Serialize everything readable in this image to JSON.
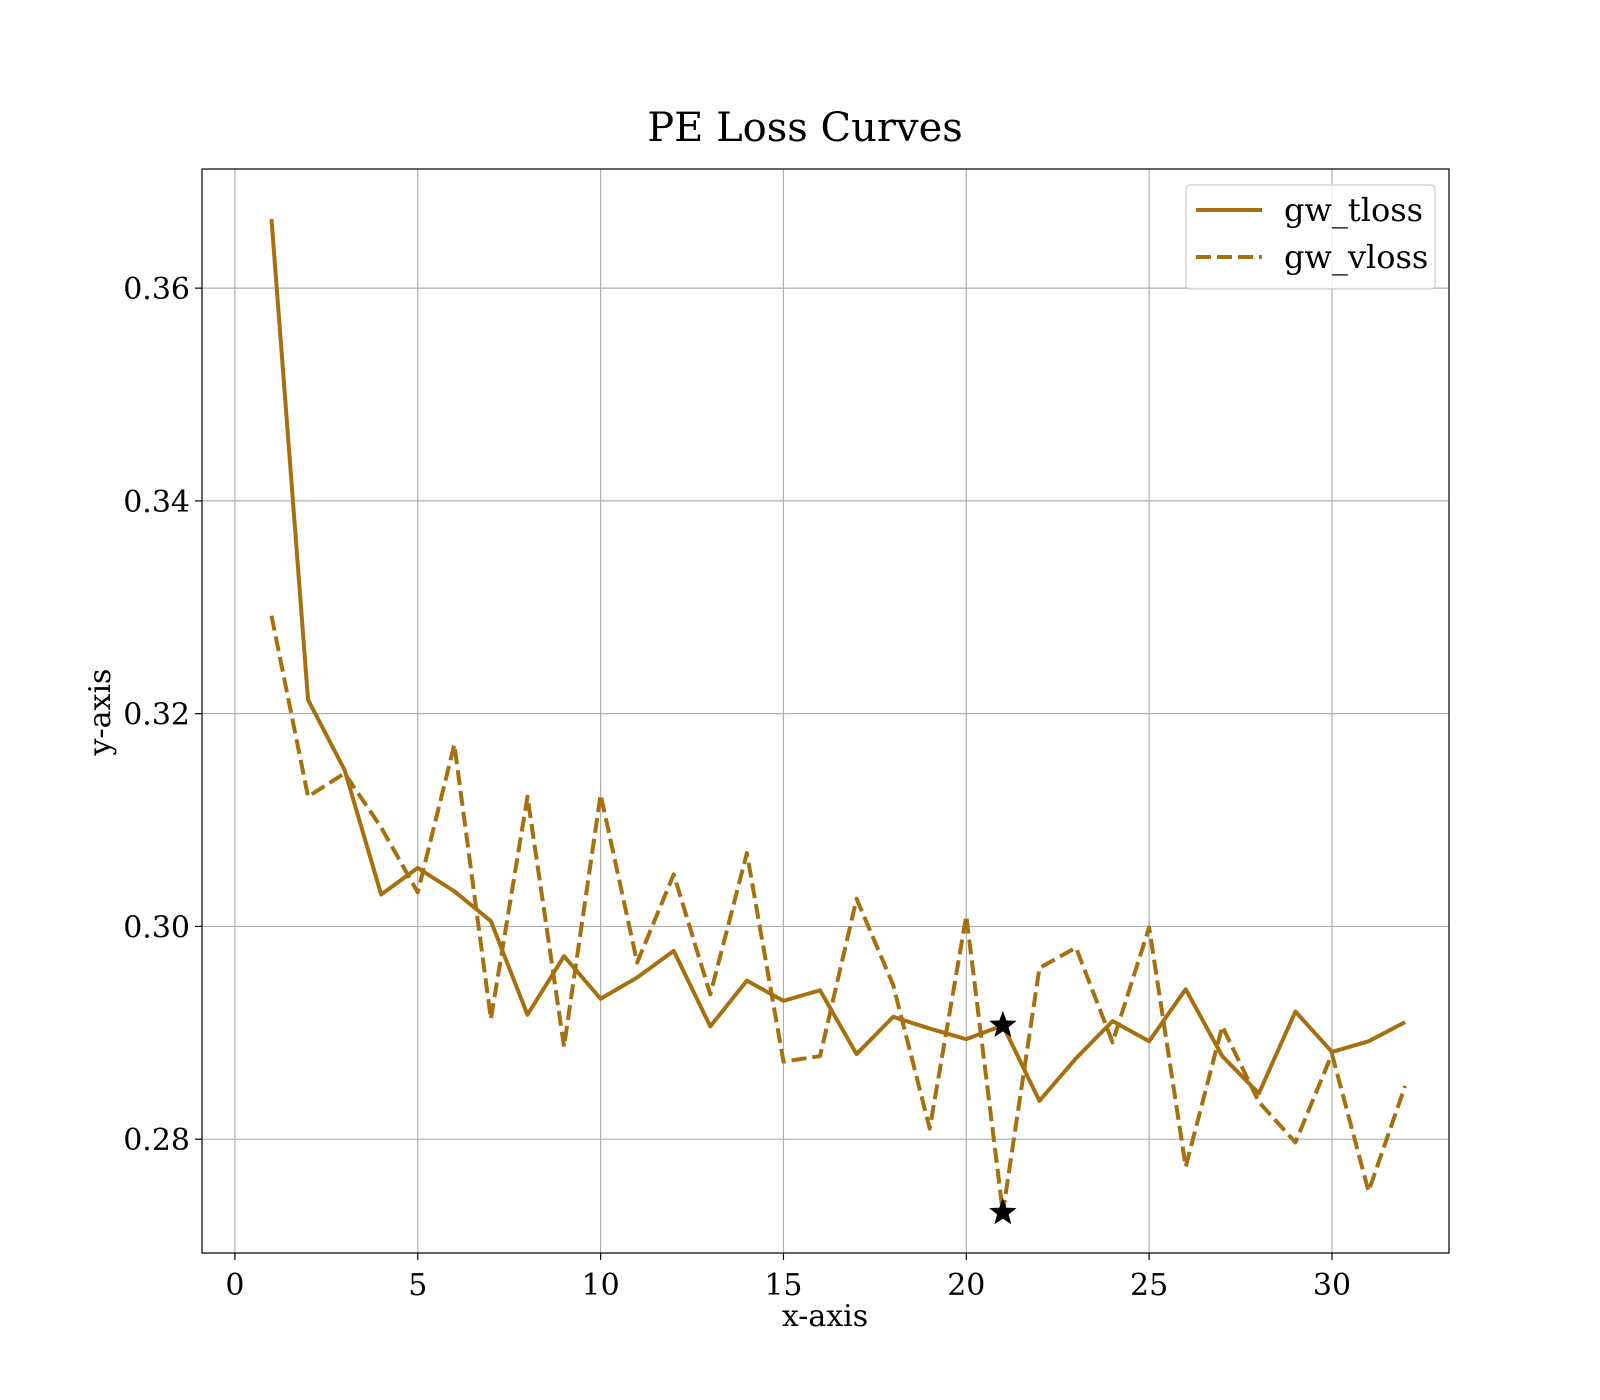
{
  "chart_data": {
    "type": "line",
    "title": "PE Loss Curves",
    "xlabel": "x-axis",
    "ylabel": "y-axis",
    "xlim": [
      -0.9,
      33.2
    ],
    "ylim": [
      0.2693,
      0.3712
    ],
    "xticks": [
      0,
      5,
      10,
      15,
      20,
      25,
      30
    ],
    "yticks": [
      0.28,
      0.3,
      0.32,
      0.34,
      0.36
    ],
    "xtick_labels": [
      "0",
      "5",
      "10",
      "15",
      "20",
      "25",
      "30"
    ],
    "ytick_labels": [
      "0.28",
      "0.30",
      "0.32",
      "0.34",
      "0.36"
    ],
    "grid": true,
    "legend_position": "top-right",
    "colors": {
      "line": "#a6700f",
      "marker": "#000000"
    },
    "x": [
      1,
      2,
      3,
      4,
      5,
      6,
      7,
      8,
      9,
      10,
      11,
      12,
      13,
      14,
      15,
      16,
      17,
      18,
      19,
      20,
      21,
      22,
      23,
      24,
      25,
      26,
      27,
      28,
      29,
      30,
      31,
      32
    ],
    "series": [
      {
        "name": "gw_tloss",
        "style": "solid",
        "values": [
          0.3665,
          0.3213,
          0.3147,
          0.303,
          0.3055,
          0.3033,
          0.3005,
          0.2917,
          0.2972,
          0.2932,
          0.2952,
          0.2977,
          0.2906,
          0.2949,
          0.293,
          0.294,
          0.288,
          0.2915,
          0.2904,
          0.2894,
          0.2907,
          0.2836,
          0.2876,
          0.2911,
          0.2892,
          0.2941,
          0.2878,
          0.2843,
          0.292,
          0.2882,
          0.2892,
          0.291
        ],
        "best": {
          "x": 21,
          "y": 0.2907
        }
      },
      {
        "name": "gw_vloss",
        "style": "dashed",
        "values": [
          0.3292,
          0.3122,
          0.3144,
          0.3093,
          0.3032,
          0.3171,
          0.2913,
          0.3122,
          0.2887,
          0.3124,
          0.2966,
          0.3049,
          0.2936,
          0.3069,
          0.2873,
          0.2878,
          0.3026,
          0.2945,
          0.281,
          0.301,
          0.2731,
          0.2961,
          0.298,
          0.2891,
          0.2999,
          0.2774,
          0.2906,
          0.2835,
          0.2797,
          0.288,
          0.2751,
          0.285
        ],
        "best": {
          "x": 21,
          "y": 0.2731
        }
      }
    ]
  }
}
